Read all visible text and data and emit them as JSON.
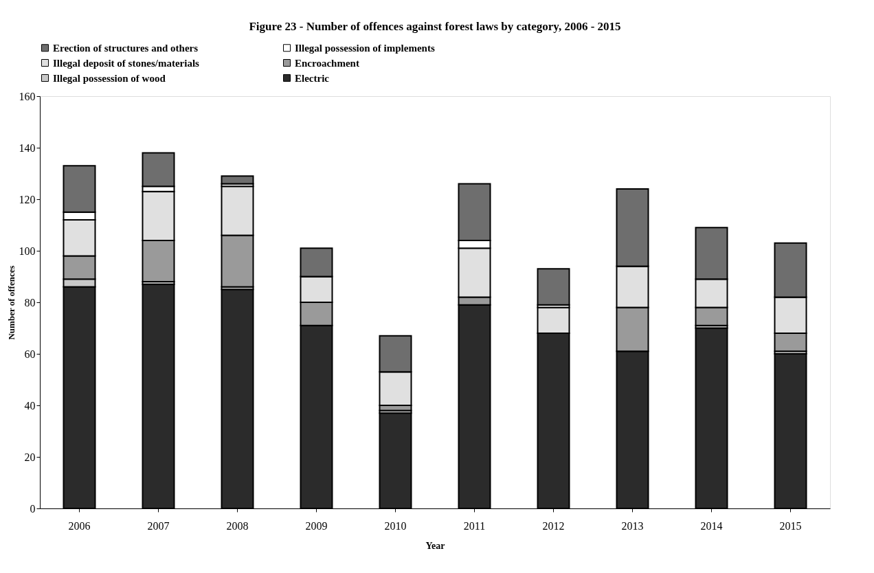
{
  "chart_data": {
    "type": "bar",
    "stacked": true,
    "title": "Figure 23 - Number of offences against forest laws by category, 2006 - 2015",
    "xlabel": "Year",
    "ylabel": "Number of offences",
    "categories": [
      "2006",
      "2007",
      "2008",
      "2009",
      "2010",
      "2011",
      "2012",
      "2013",
      "2014",
      "2015"
    ],
    "series": [
      {
        "name": "Electric",
        "color": "#2b2b2b",
        "values": [
          86,
          87,
          85,
          71,
          37,
          79,
          68,
          61,
          70,
          60
        ]
      },
      {
        "name": "Illegal possession of wood",
        "color": "#c8c8c8",
        "values": [
          3,
          1,
          1,
          0,
          1,
          0,
          0,
          0,
          1,
          1
        ]
      },
      {
        "name": "Encroachment",
        "color": "#9a9a9a",
        "values": [
          9,
          16,
          20,
          9,
          2,
          3,
          0,
          17,
          7,
          7
        ]
      },
      {
        "name": "Illegal deposit of stones/materials",
        "color": "#e0e0e0",
        "values": [
          14,
          19,
          19,
          10,
          13,
          19,
          10,
          16,
          11,
          14
        ]
      },
      {
        "name": "Illegal possession of implements",
        "color": "#ffffff",
        "values": [
          3,
          2,
          1,
          0,
          0,
          3,
          1,
          0,
          0,
          0
        ]
      },
      {
        "name": "Erection of structures and others",
        "color": "#6e6e6e",
        "values": [
          18,
          13,
          3,
          11,
          14,
          22,
          14,
          30,
          20,
          21
        ]
      }
    ],
    "ylim": [
      0,
      160
    ],
    "yticks": [
      0,
      20,
      40,
      60,
      80,
      100,
      120,
      140,
      160
    ],
    "grid": false,
    "legend": "top"
  }
}
